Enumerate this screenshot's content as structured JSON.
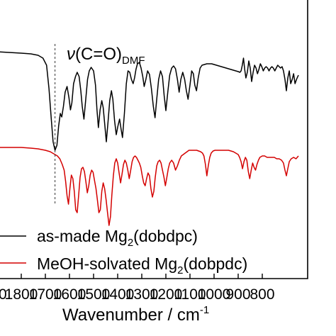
{
  "chart_data": {
    "type": "line",
    "title": "",
    "xlabel": "Wavenumber / cm",
    "xlabel_superscript": "-1",
    "ylabel": "",
    "xlim": [
      2000,
      650
    ],
    "x_reversed": true,
    "y_ticks_visible": false,
    "grid": false,
    "x_tick_labels": [
      "1800",
      "1700",
      "1600",
      "1500",
      "1400",
      "1300",
      "1200",
      "1100",
      "1000",
      "900",
      "800"
    ],
    "x_tick_values": [
      1800,
      1700,
      1600,
      1500,
      1400,
      1300,
      1200,
      1100,
      1000,
      900,
      800
    ],
    "x_edge_label": "0",
    "legend_placement": "bottom",
    "annotation": {
      "label_prefix": "ν",
      "label_main": "(C=O)",
      "label_sub": "DMF",
      "x": 1660,
      "style": "dashed-vertical-line"
    },
    "series": [
      {
        "name_prefix": "as-made Mg",
        "name_sub": "2",
        "name_suffix": "(dobdpc)",
        "color": "#000000",
        "points": [
          [
            2000,
            72
          ],
          [
            1900,
            73
          ],
          [
            1850,
            74
          ],
          [
            1800,
            75
          ],
          [
            1760,
            76
          ],
          [
            1730,
            78
          ],
          [
            1710,
            82
          ],
          [
            1695,
            92
          ],
          [
            1685,
            125
          ],
          [
            1675,
            170
          ],
          [
            1668,
            200
          ],
          [
            1660,
            212
          ],
          [
            1652,
            205
          ],
          [
            1645,
            178
          ],
          [
            1638,
            160
          ],
          [
            1632,
            165
          ],
          [
            1625,
            150
          ],
          [
            1618,
            130
          ],
          [
            1610,
            122
          ],
          [
            1602,
            138
          ],
          [
            1596,
            155
          ],
          [
            1590,
            145
          ],
          [
            1583,
            118
          ],
          [
            1575,
            108
          ],
          [
            1568,
            102
          ],
          [
            1560,
            108
          ],
          [
            1553,
            128
          ],
          [
            1547,
            150
          ],
          [
            1540,
            168
          ],
          [
            1533,
            142
          ],
          [
            1525,
            112
          ],
          [
            1518,
            100
          ],
          [
            1510,
            95
          ],
          [
            1500,
            100
          ],
          [
            1492,
            120
          ],
          [
            1486,
            155
          ],
          [
            1480,
            180
          ],
          [
            1473,
            155
          ],
          [
            1466,
            142
          ],
          [
            1460,
            152
          ],
          [
            1453,
            178
          ],
          [
            1447,
            200
          ],
          [
            1440,
            172
          ],
          [
            1433,
            142
          ],
          [
            1426,
            128
          ],
          [
            1420,
            140
          ],
          [
            1413,
            170
          ],
          [
            1406,
            190
          ],
          [
            1399,
            178
          ],
          [
            1392,
            168
          ],
          [
            1386,
            182
          ],
          [
            1380,
            194
          ],
          [
            1372,
            160
          ],
          [
            1364,
            118
          ],
          [
            1357,
            100
          ],
          [
            1350,
            102
          ],
          [
            1343,
            112
          ],
          [
            1336,
            118
          ],
          [
            1330,
            110
          ],
          [
            1324,
            98
          ],
          [
            1318,
            90
          ],
          [
            1310,
            88
          ],
          [
            1303,
            96
          ],
          [
            1296,
            108
          ],
          [
            1290,
            122
          ],
          [
            1283,
            112
          ],
          [
            1276,
            100
          ],
          [
            1268,
            105
          ],
          [
            1260,
            125
          ],
          [
            1252,
            150
          ],
          [
            1245,
            166
          ],
          [
            1238,
            140
          ],
          [
            1230,
            112
          ],
          [
            1222,
            100
          ],
          [
            1214,
            108
          ],
          [
            1207,
            135
          ],
          [
            1200,
            156
          ],
          [
            1192,
            130
          ],
          [
            1184,
            106
          ],
          [
            1176,
            96
          ],
          [
            1168,
            93
          ],
          [
            1160,
            97
          ],
          [
            1152,
            112
          ],
          [
            1145,
            130
          ],
          [
            1138,
            112
          ],
          [
            1130,
            102
          ],
          [
            1122,
            112
          ],
          [
            1115,
            128
          ],
          [
            1108,
            140
          ],
          [
            1100,
            120
          ],
          [
            1093,
            100
          ],
          [
            1086,
            104
          ],
          [
            1080,
            120
          ],
          [
            1073,
            128
          ],
          [
            1066,
            110
          ],
          [
            1058,
            96
          ],
          [
            1050,
            92
          ],
          [
            1040,
            91
          ],
          [
            1030,
            90
          ],
          [
            1020,
            90
          ],
          [
            1010,
            90
          ],
          [
            1000,
            91
          ],
          [
            990,
            92
          ],
          [
            980,
            93
          ],
          [
            970,
            94
          ],
          [
            960,
            95
          ],
          [
            950,
            96
          ],
          [
            940,
            97
          ],
          [
            930,
            98
          ],
          [
            920,
            99
          ],
          [
            910,
            100
          ],
          [
            900,
            101
          ],
          [
            893,
            102
          ],
          [
            888,
            100
          ],
          [
            883,
            92
          ],
          [
            878,
            82
          ],
          [
            873,
            98
          ],
          [
            868,
            110
          ],
          [
            862,
            102
          ],
          [
            856,
            86
          ],
          [
            850,
            96
          ],
          [
            844,
            115
          ],
          [
            838,
            102
          ],
          [
            832,
            92
          ],
          [
            826,
            96
          ],
          [
            820,
            104
          ],
          [
            814,
            98
          ],
          [
            808,
            90
          ],
          [
            802,
            94
          ],
          [
            796,
            100
          ],
          [
            790,
            96
          ],
          [
            784,
            94
          ],
          [
            778,
            96
          ],
          [
            772,
            100
          ],
          [
            766,
            96
          ],
          [
            760,
            94
          ],
          [
            754,
            96
          ],
          [
            748,
            100
          ],
          [
            742,
            96
          ],
          [
            736,
            92
          ],
          [
            730,
            94
          ],
          [
            724,
            96
          ],
          [
            718,
            94
          ],
          [
            712,
            100
          ],
          [
            706,
            112
          ],
          [
            700,
            128
          ],
          [
            694,
            110
          ],
          [
            688,
            100
          ],
          [
            682,
            118
          ],
          [
            676,
            112
          ],
          [
            670,
            104
          ],
          [
            664,
            118
          ],
          [
            658,
            112
          ],
          [
            650,
            106
          ]
        ]
      },
      {
        "name_prefix": "MeOH-solvated Mg",
        "name_sub": "2",
        "name_suffix": "(dobpdc)",
        "color": "#d40000",
        "points": [
          [
            2000,
            208
          ],
          [
            1900,
            208
          ],
          [
            1800,
            208
          ],
          [
            1760,
            209
          ],
          [
            1730,
            210
          ],
          [
            1700,
            212
          ],
          [
            1680,
            214
          ],
          [
            1665,
            217
          ],
          [
            1650,
            220
          ],
          [
            1640,
            224
          ],
          [
            1630,
            232
          ],
          [
            1622,
            240
          ],
          [
            1616,
            256
          ],
          [
            1610,
            276
          ],
          [
            1604,
            288
          ],
          [
            1598,
            265
          ],
          [
            1592,
            247
          ],
          [
            1586,
            252
          ],
          [
            1580,
            270
          ],
          [
            1574,
            296
          ],
          [
            1568,
            300
          ],
          [
            1562,
            276
          ],
          [
            1556,
            250
          ],
          [
            1550,
            238
          ],
          [
            1544,
            236
          ],
          [
            1538,
            242
          ],
          [
            1532,
            256
          ],
          [
            1526,
            272
          ],
          [
            1520,
            262
          ],
          [
            1514,
            247
          ],
          [
            1508,
            240
          ],
          [
            1502,
            243
          ],
          [
            1496,
            255
          ],
          [
            1490,
            266
          ],
          [
            1484,
            282
          ],
          [
            1478,
            300
          ],
          [
            1472,
            296
          ],
          [
            1466,
            270
          ],
          [
            1460,
            258
          ],
          [
            1454,
            266
          ],
          [
            1448,
            282
          ],
          [
            1442,
            300
          ],
          [
            1436,
            318
          ],
          [
            1430,
            306
          ],
          [
            1424,
            275
          ],
          [
            1418,
            248
          ],
          [
            1412,
            230
          ],
          [
            1406,
            224
          ],
          [
            1400,
            230
          ],
          [
            1394,
            244
          ],
          [
            1388,
            258
          ],
          [
            1382,
            246
          ],
          [
            1376,
            232
          ],
          [
            1370,
            226
          ],
          [
            1364,
            230
          ],
          [
            1358,
            240
          ],
          [
            1352,
            252
          ],
          [
            1346,
            240
          ],
          [
            1340,
            228
          ],
          [
            1334,
            222
          ],
          [
            1328,
            220
          ],
          [
            1322,
            222
          ],
          [
            1316,
            226
          ],
          [
            1310,
            230
          ],
          [
            1304,
            236
          ],
          [
            1298,
            248
          ],
          [
            1292,
            258
          ],
          [
            1286,
            262
          ],
          [
            1280,
            252
          ],
          [
            1274,
            244
          ],
          [
            1268,
            248
          ],
          [
            1262,
            266
          ],
          [
            1256,
            278
          ],
          [
            1250,
            270
          ],
          [
            1244,
            250
          ],
          [
            1238,
            234
          ],
          [
            1232,
            228
          ],
          [
            1226,
            226
          ],
          [
            1220,
            230
          ],
          [
            1214,
            240
          ],
          [
            1208,
            250
          ],
          [
            1202,
            262
          ],
          [
            1196,
            250
          ],
          [
            1190,
            238
          ],
          [
            1184,
            230
          ],
          [
            1176,
            226
          ],
          [
            1168,
            230
          ],
          [
            1160,
            240
          ],
          [
            1152,
            234
          ],
          [
            1144,
            226
          ],
          [
            1136,
            220
          ],
          [
            1128,
            218
          ],
          [
            1120,
            216
          ],
          [
            1112,
            214
          ],
          [
            1104,
            212
          ],
          [
            1096,
            212
          ],
          [
            1088,
            212
          ],
          [
            1080,
            212
          ],
          [
            1072,
            212
          ],
          [
            1064,
            213
          ],
          [
            1056,
            214
          ],
          [
            1048,
            216
          ],
          [
            1042,
            220
          ],
          [
            1036,
            232
          ],
          [
            1030,
            248
          ],
          [
            1024,
            234
          ],
          [
            1018,
            222
          ],
          [
            1012,
            216
          ],
          [
            1004,
            213
          ],
          [
            996,
            212
          ],
          [
            988,
            212
          ],
          [
            980,
            212
          ],
          [
            970,
            212
          ],
          [
            960,
            212
          ],
          [
            950,
            212
          ],
          [
            940,
            212
          ],
          [
            930,
            213
          ],
          [
            920,
            214
          ],
          [
            910,
            216
          ],
          [
            900,
            218
          ],
          [
            894,
            222
          ],
          [
            888,
            228
          ],
          [
            882,
            238
          ],
          [
            876,
            228
          ],
          [
            870,
            222
          ],
          [
            864,
            226
          ],
          [
            858,
            242
          ],
          [
            852,
            252
          ],
          [
            846,
            240
          ],
          [
            840,
            230
          ],
          [
            834,
            236
          ],
          [
            828,
            240
          ],
          [
            822,
            232
          ],
          [
            816,
            226
          ],
          [
            810,
            222
          ],
          [
            800,
            220
          ],
          [
            790,
            220
          ],
          [
            780,
            222
          ],
          [
            770,
            222
          ],
          [
            760,
            222
          ],
          [
            750,
            222
          ],
          [
            740,
            224
          ],
          [
            730,
            224
          ],
          [
            720,
            226
          ],
          [
            712,
            230
          ],
          [
            706,
            240
          ],
          [
            700,
            248
          ],
          [
            694,
            238
          ],
          [
            688,
            228
          ],
          [
            680,
            224
          ],
          [
            670,
            222
          ],
          [
            660,
            224
          ],
          [
            650,
            220
          ]
        ]
      }
    ]
  }
}
